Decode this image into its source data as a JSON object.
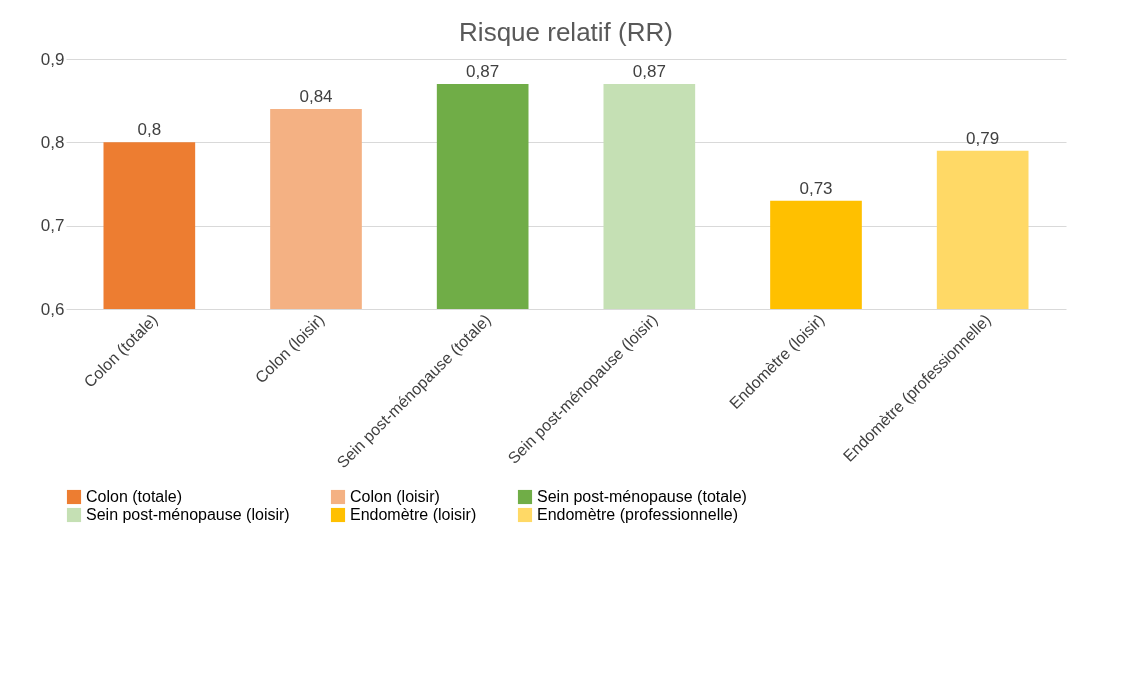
{
  "chart_data": {
    "type": "bar",
    "title": "Risque relatif (RR)",
    "categories": [
      "Colon (totale)",
      "Colon (loisir)",
      "Sein post-ménopause (totale)",
      "Sein post-ménopause (loisir)",
      "Endomètre (loisir)",
      "Endomètre (professionnelle)"
    ],
    "series": [
      {
        "name": "Colon (totale)",
        "color": "#ed7d31",
        "values": [
          0.8,
          null,
          null,
          null,
          null,
          null
        ],
        "value_labels": [
          "0,8",
          null,
          null,
          null,
          null,
          null
        ]
      },
      {
        "name": "Colon (loisir)",
        "color": "#f4b183",
        "values": [
          null,
          0.84,
          null,
          null,
          null,
          null
        ],
        "value_labels": [
          null,
          "0,84",
          null,
          null,
          null,
          null
        ]
      },
      {
        "name": "Sein post-ménopause (totale)",
        "color": "#70ad47",
        "values": [
          null,
          null,
          0.87,
          null,
          null,
          null
        ],
        "value_labels": [
          null,
          null,
          "0,87",
          null,
          null,
          null
        ]
      },
      {
        "name": "Sein post-ménopause (loisir)",
        "color": "#c5e0b4",
        "values": [
          null,
          null,
          null,
          0.87,
          null,
          null
        ],
        "value_labels": [
          null,
          null,
          null,
          "0,87",
          null,
          null
        ]
      },
      {
        "name": "Endomètre (loisir)",
        "color": "#ffc000",
        "values": [
          null,
          null,
          null,
          null,
          0.73,
          null
        ],
        "value_labels": [
          null,
          null,
          null,
          null,
          "0,73",
          null
        ]
      },
      {
        "name": "Endomètre (professionnelle)",
        "color": "#ffd966",
        "values": [
          null,
          null,
          null,
          null,
          null,
          0.79
        ],
        "value_labels": [
          null,
          null,
          null,
          null,
          null,
          "0,79"
        ]
      }
    ],
    "ylim": [
      0.6,
      0.9
    ],
    "yticks": [
      {
        "value": 0.6,
        "label": "0,6"
      },
      {
        "value": 0.7,
        "label": "0,7"
      },
      {
        "value": 0.8,
        "label": "0,8"
      },
      {
        "value": 0.9,
        "label": "0,9"
      }
    ],
    "grid": "y",
    "legend": "bottom"
  }
}
